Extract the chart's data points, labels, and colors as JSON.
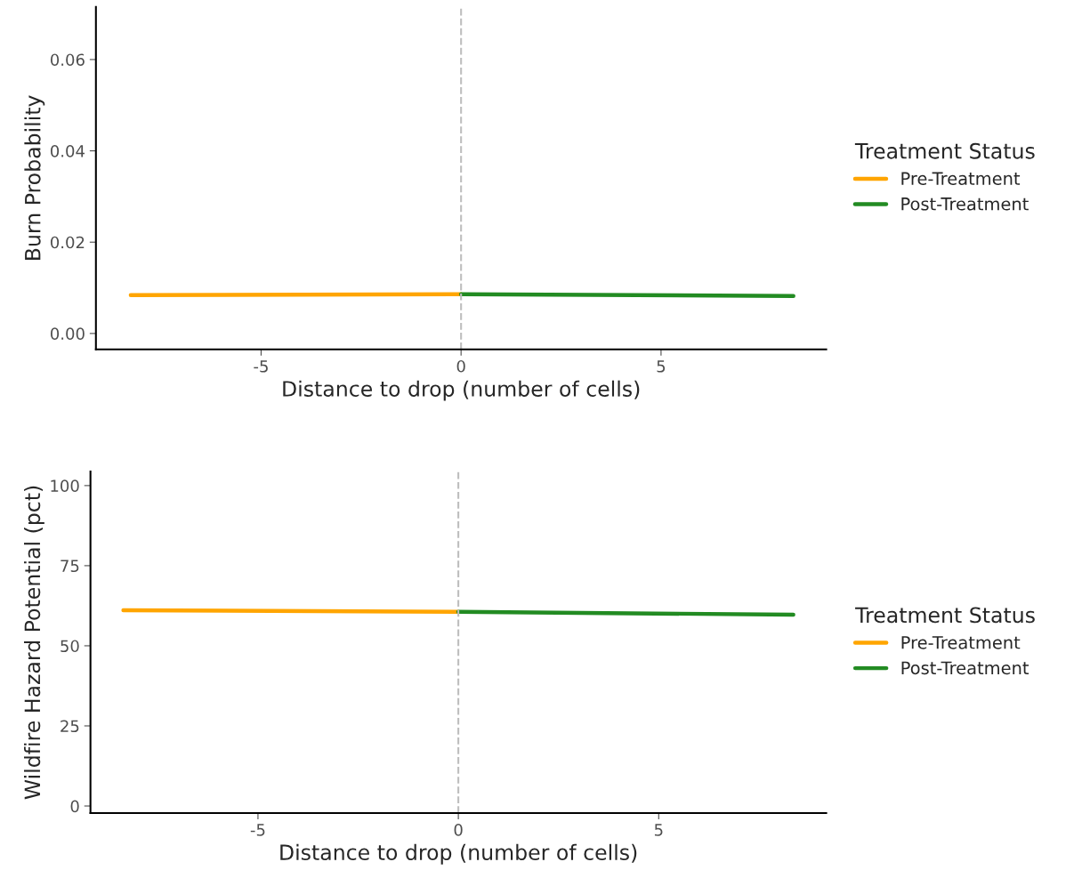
{
  "chart_data": [
    {
      "type": "line",
      "xlabel": "Distance to drop (number of cells)",
      "ylabel": "Burn Probability",
      "legend_title": "Treatment Status",
      "legend": "right",
      "grid": false,
      "xlim": [
        -9.13,
        9.13
      ],
      "xticks": [
        -5,
        0,
        5
      ],
      "ylim": [
        -0.0035,
        0.0715
      ],
      "yticks": [
        {
          "value": 0,
          "label": "0.00"
        },
        0.02,
        0.04,
        0.06
      ],
      "ref_lines": [
        {
          "axis": "x",
          "value": 0,
          "color": "#bebebe",
          "line_style": "dashed"
        }
      ],
      "series": [
        {
          "name": "Pre-Treatment",
          "color": "#ffa500",
          "x": [
            -8.26,
            0
          ],
          "values": [
            0.0084,
            0.0086
          ]
        },
        {
          "name": "Post-Treatment",
          "color": "#228b22",
          "x": [
            0,
            8.31
          ],
          "values": [
            0.0086,
            0.0082
          ]
        }
      ]
    },
    {
      "type": "line",
      "xlabel": "Distance to drop (number of cells)",
      "ylabel": "Wildfire Hazard Potential (pct)",
      "legend_title": "Treatment Status",
      "legend": "right",
      "grid": false,
      "xlim": [
        -9.18,
        9.18
      ],
      "xticks": [
        -5,
        0,
        5
      ],
      "ylim": [
        -2.2,
        104.4
      ],
      "yticks": [
        0,
        25,
        50,
        75,
        100
      ],
      "ref_lines": [
        {
          "axis": "x",
          "value": 0,
          "color": "#bebebe",
          "line_style": "dashed"
        }
      ],
      "series": [
        {
          "name": "Pre-Treatment",
          "color": "#ffa500",
          "x": [
            -8.36,
            0
          ],
          "values": [
            61.1,
            60.6
          ]
        },
        {
          "name": "Post-Treatment",
          "color": "#228b22",
          "x": [
            0,
            8.36
          ],
          "values": [
            60.6,
            59.7
          ]
        }
      ]
    }
  ]
}
